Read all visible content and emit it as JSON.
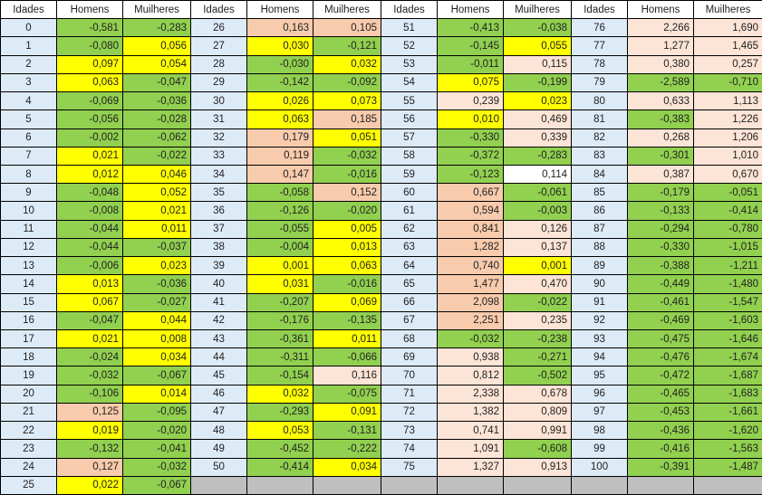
{
  "table": {
    "column_headers": [
      "Idades",
      "Homens",
      "Muilheres"
    ],
    "color_key": {
      "g": "#92D050",
      "y": "#FFFF00",
      "o": "#F8CBAD",
      "lo": "#FCE4D6",
      "w": "#FFFFFF"
    },
    "other_colors": {
      "age_column_fill": "#DDEBF7",
      "empty_cell_fill": "#BFBFBF",
      "grid_line": "#000000",
      "header_fill": "#FFFFFF"
    },
    "groups": [
      {
        "empty_footer_row": false,
        "rows": [
          {
            "age": "0",
            "h": "-0,581",
            "hc": "g",
            "m": "-0,283",
            "mc": "g"
          },
          {
            "age": "1",
            "h": "-0,080",
            "hc": "g",
            "m": "0,056",
            "mc": "y"
          },
          {
            "age": "2",
            "h": "0,097",
            "hc": "y",
            "m": "0,054",
            "mc": "y"
          },
          {
            "age": "3",
            "h": "0,063",
            "hc": "y",
            "m": "-0,047",
            "mc": "g"
          },
          {
            "age": "4",
            "h": "-0,069",
            "hc": "g",
            "m": "-0,036",
            "mc": "g"
          },
          {
            "age": "5",
            "h": "-0,056",
            "hc": "g",
            "m": "-0,028",
            "mc": "g"
          },
          {
            "age": "6",
            "h": "-0,002",
            "hc": "g",
            "m": "-0,062",
            "mc": "g"
          },
          {
            "age": "7",
            "h": "0,021",
            "hc": "y",
            "m": "-0,022",
            "mc": "g"
          },
          {
            "age": "8",
            "h": "0,012",
            "hc": "y",
            "m": "0,046",
            "mc": "y"
          },
          {
            "age": "9",
            "h": "-0,048",
            "hc": "g",
            "m": "0,052",
            "mc": "y"
          },
          {
            "age": "10",
            "h": "-0,008",
            "hc": "g",
            "m": "0,021",
            "mc": "y"
          },
          {
            "age": "11",
            "h": "-0,044",
            "hc": "g",
            "m": "0,011",
            "mc": "y"
          },
          {
            "age": "12",
            "h": "-0,044",
            "hc": "g",
            "m": "-0,037",
            "mc": "g"
          },
          {
            "age": "13",
            "h": "-0,006",
            "hc": "g",
            "m": "0,023",
            "mc": "y"
          },
          {
            "age": "14",
            "h": "0,013",
            "hc": "y",
            "m": "-0,036",
            "mc": "g"
          },
          {
            "age": "15",
            "h": "0,067",
            "hc": "y",
            "m": "-0,027",
            "mc": "g"
          },
          {
            "age": "16",
            "h": "-0,047",
            "hc": "g",
            "m": "0,044",
            "mc": "y"
          },
          {
            "age": "17",
            "h": "0,021",
            "hc": "y",
            "m": "0,008",
            "mc": "y"
          },
          {
            "age": "18",
            "h": "-0,024",
            "hc": "g",
            "m": "0,034",
            "mc": "y"
          },
          {
            "age": "19",
            "h": "-0,032",
            "hc": "g",
            "m": "-0,067",
            "mc": "g"
          },
          {
            "age": "20",
            "h": "-0,106",
            "hc": "g",
            "m": "0,014",
            "mc": "y"
          },
          {
            "age": "21",
            "h": "0,125",
            "hc": "o",
            "m": "-0,095",
            "mc": "g"
          },
          {
            "age": "22",
            "h": "0,019",
            "hc": "y",
            "m": "-0,020",
            "mc": "g"
          },
          {
            "age": "23",
            "h": "-0,132",
            "hc": "g",
            "m": "-0,041",
            "mc": "g"
          },
          {
            "age": "24",
            "h": "0,127",
            "hc": "o",
            "m": "-0,032",
            "mc": "g"
          },
          {
            "age": "25",
            "h": "0,022",
            "hc": "y",
            "m": "-0,067",
            "mc": "g"
          }
        ]
      },
      {
        "empty_footer_row": true,
        "rows": [
          {
            "age": "26",
            "h": "0,163",
            "hc": "o",
            "m": "0,105",
            "mc": "o"
          },
          {
            "age": "27",
            "h": "0,030",
            "hc": "y",
            "m": "-0,121",
            "mc": "g"
          },
          {
            "age": "28",
            "h": "-0,030",
            "hc": "g",
            "m": "0,032",
            "mc": "y"
          },
          {
            "age": "29",
            "h": "-0,142",
            "hc": "g",
            "m": "-0,092",
            "mc": "g"
          },
          {
            "age": "30",
            "h": "0,026",
            "hc": "y",
            "m": "0,073",
            "mc": "y"
          },
          {
            "age": "31",
            "h": "0,063",
            "hc": "y",
            "m": "0,185",
            "mc": "o"
          },
          {
            "age": "32",
            "h": "0,179",
            "hc": "o",
            "m": "0,051",
            "mc": "y"
          },
          {
            "age": "33",
            "h": "0,119",
            "hc": "o",
            "m": "-0,032",
            "mc": "g"
          },
          {
            "age": "34",
            "h": "0,147",
            "hc": "o",
            "m": "-0,016",
            "mc": "g"
          },
          {
            "age": "35",
            "h": "-0,058",
            "hc": "g",
            "m": "0,152",
            "mc": "o"
          },
          {
            "age": "36",
            "h": "-0,126",
            "hc": "g",
            "m": "-0,020",
            "mc": "g"
          },
          {
            "age": "37",
            "h": "-0,055",
            "hc": "g",
            "m": "0,005",
            "mc": "y"
          },
          {
            "age": "38",
            "h": "-0,004",
            "hc": "g",
            "m": "0,013",
            "mc": "y"
          },
          {
            "age": "39",
            "h": "0,001",
            "hc": "y",
            "m": "0,063",
            "mc": "y"
          },
          {
            "age": "40",
            "h": "0,031",
            "hc": "y",
            "m": "-0,016",
            "mc": "g"
          },
          {
            "age": "41",
            "h": "-0,207",
            "hc": "g",
            "m": "0,069",
            "mc": "y"
          },
          {
            "age": "42",
            "h": "-0,176",
            "hc": "g",
            "m": "-0,135",
            "mc": "g"
          },
          {
            "age": "43",
            "h": "-0,361",
            "hc": "g",
            "m": "0,011",
            "mc": "y"
          },
          {
            "age": "44",
            "h": "-0,311",
            "hc": "g",
            "m": "-0,066",
            "mc": "g"
          },
          {
            "age": "45",
            "h": "-0,154",
            "hc": "g",
            "m": "0,116",
            "mc": "lo"
          },
          {
            "age": "46",
            "h": "0,032",
            "hc": "y",
            "m": "-0,075",
            "mc": "g"
          },
          {
            "age": "47",
            "h": "-0,293",
            "hc": "g",
            "m": "0,091",
            "mc": "y"
          },
          {
            "age": "48",
            "h": "0,053",
            "hc": "y",
            "m": "-0,131",
            "mc": "g"
          },
          {
            "age": "49",
            "h": "-0,452",
            "hc": "g",
            "m": "-0,222",
            "mc": "g"
          },
          {
            "age": "50",
            "h": "-0,414",
            "hc": "g",
            "m": "0,034",
            "mc": "y"
          }
        ]
      },
      {
        "empty_footer_row": true,
        "rows": [
          {
            "age": "51",
            "h": "-0,413",
            "hc": "g",
            "m": "-0,038",
            "mc": "g"
          },
          {
            "age": "52",
            "h": "-0,145",
            "hc": "g",
            "m": "0,055",
            "mc": "y"
          },
          {
            "age": "53",
            "h": "-0,011",
            "hc": "g",
            "m": "0,115",
            "mc": "lo"
          },
          {
            "age": "54",
            "h": "0,075",
            "hc": "y",
            "m": "-0,199",
            "mc": "g"
          },
          {
            "age": "55",
            "h": "0,239",
            "hc": "lo",
            "m": "0,023",
            "mc": "y"
          },
          {
            "age": "56",
            "h": "0,010",
            "hc": "y",
            "m": "0,469",
            "mc": "lo"
          },
          {
            "age": "57",
            "h": "-0,330",
            "hc": "g",
            "m": "0,339",
            "mc": "lo"
          },
          {
            "age": "58",
            "h": "-0,372",
            "hc": "g",
            "m": "-0,283",
            "mc": "g"
          },
          {
            "age": "59",
            "h": "-0,123",
            "hc": "g",
            "m": "0,114",
            "mc": "w"
          },
          {
            "age": "60",
            "h": "0,667",
            "hc": "o",
            "m": "-0,061",
            "mc": "g"
          },
          {
            "age": "61",
            "h": "0,594",
            "hc": "o",
            "m": "-0,003",
            "mc": "g"
          },
          {
            "age": "62",
            "h": "0,841",
            "hc": "o",
            "m": "0,126",
            "mc": "lo"
          },
          {
            "age": "63",
            "h": "1,282",
            "hc": "o",
            "m": "0,137",
            "mc": "lo"
          },
          {
            "age": "64",
            "h": "0,740",
            "hc": "o",
            "m": "0,001",
            "mc": "y"
          },
          {
            "age": "65",
            "h": "1,477",
            "hc": "o",
            "m": "0,470",
            "mc": "lo"
          },
          {
            "age": "66",
            "h": "2,098",
            "hc": "o",
            "m": "-0,022",
            "mc": "g"
          },
          {
            "age": "67",
            "h": "2,251",
            "hc": "o",
            "m": "0,235",
            "mc": "lo"
          },
          {
            "age": "68",
            "h": "-0,032",
            "hc": "g",
            "m": "-0,238",
            "mc": "g"
          },
          {
            "age": "69",
            "h": "0,938",
            "hc": "lo",
            "m": "-0,271",
            "mc": "g"
          },
          {
            "age": "70",
            "h": "0,812",
            "hc": "lo",
            "m": "-0,502",
            "mc": "g"
          },
          {
            "age": "71",
            "h": "2,338",
            "hc": "lo",
            "m": "0,678",
            "mc": "lo"
          },
          {
            "age": "72",
            "h": "1,382",
            "hc": "lo",
            "m": "0,809",
            "mc": "lo"
          },
          {
            "age": "73",
            "h": "0,741",
            "hc": "lo",
            "m": "0,991",
            "mc": "lo"
          },
          {
            "age": "74",
            "h": "1,091",
            "hc": "lo",
            "m": "-0,608",
            "mc": "g"
          },
          {
            "age": "75",
            "h": "1,327",
            "hc": "lo",
            "m": "0,913",
            "mc": "lo"
          }
        ]
      },
      {
        "empty_footer_row": true,
        "rows": [
          {
            "age": "76",
            "h": "2,266",
            "hc": "lo",
            "m": "1,690",
            "mc": "lo"
          },
          {
            "age": "77",
            "h": "1,277",
            "hc": "lo",
            "m": "1,465",
            "mc": "lo"
          },
          {
            "age": "78",
            "h": "0,380",
            "hc": "lo",
            "m": "0,257",
            "mc": "lo"
          },
          {
            "age": "79",
            "h": "-2,589",
            "hc": "g",
            "m": "-0,710",
            "mc": "g"
          },
          {
            "age": "80",
            "h": "0,633",
            "hc": "lo",
            "m": "1,113",
            "mc": "lo"
          },
          {
            "age": "81",
            "h": "-0,383",
            "hc": "g",
            "m": "1,226",
            "mc": "lo"
          },
          {
            "age": "82",
            "h": "0,268",
            "hc": "lo",
            "m": "1,206",
            "mc": "lo"
          },
          {
            "age": "83",
            "h": "-0,301",
            "hc": "g",
            "m": "1,010",
            "mc": "lo"
          },
          {
            "age": "84",
            "h": "0,387",
            "hc": "lo",
            "m": "0,670",
            "mc": "lo"
          },
          {
            "age": "85",
            "h": "-0,179",
            "hc": "g",
            "m": "-0,051",
            "mc": "g"
          },
          {
            "age": "86",
            "h": "-0,133",
            "hc": "g",
            "m": "-0,414",
            "mc": "g"
          },
          {
            "age": "87",
            "h": "-0,294",
            "hc": "g",
            "m": "-0,780",
            "mc": "g"
          },
          {
            "age": "88",
            "h": "-0,330",
            "hc": "g",
            "m": "-1,015",
            "mc": "g"
          },
          {
            "age": "89",
            "h": "-0,388",
            "hc": "g",
            "m": "-1,211",
            "mc": "g"
          },
          {
            "age": "90",
            "h": "-0,449",
            "hc": "g",
            "m": "-1,480",
            "mc": "g"
          },
          {
            "age": "91",
            "h": "-0,461",
            "hc": "g",
            "m": "-1,547",
            "mc": "g"
          },
          {
            "age": "92",
            "h": "-0,469",
            "hc": "g",
            "m": "-1,603",
            "mc": "g"
          },
          {
            "age": "93",
            "h": "-0,475",
            "hc": "g",
            "m": "-1,646",
            "mc": "g"
          },
          {
            "age": "94",
            "h": "-0,476",
            "hc": "g",
            "m": "-1,674",
            "mc": "g"
          },
          {
            "age": "95",
            "h": "-0,472",
            "hc": "g",
            "m": "-1,687",
            "mc": "g"
          },
          {
            "age": "96",
            "h": "-0,465",
            "hc": "g",
            "m": "-1,683",
            "mc": "g"
          },
          {
            "age": "97",
            "h": "-0,453",
            "hc": "g",
            "m": "-1,661",
            "mc": "g"
          },
          {
            "age": "98",
            "h": "-0,436",
            "hc": "g",
            "m": "-1,620",
            "mc": "g"
          },
          {
            "age": "99",
            "h": "-0,416",
            "hc": "g",
            "m": "-1,563",
            "mc": "g"
          },
          {
            "age": "100",
            "h": "-0,391",
            "hc": "g",
            "m": "-1,487",
            "mc": "g"
          }
        ]
      }
    ]
  }
}
